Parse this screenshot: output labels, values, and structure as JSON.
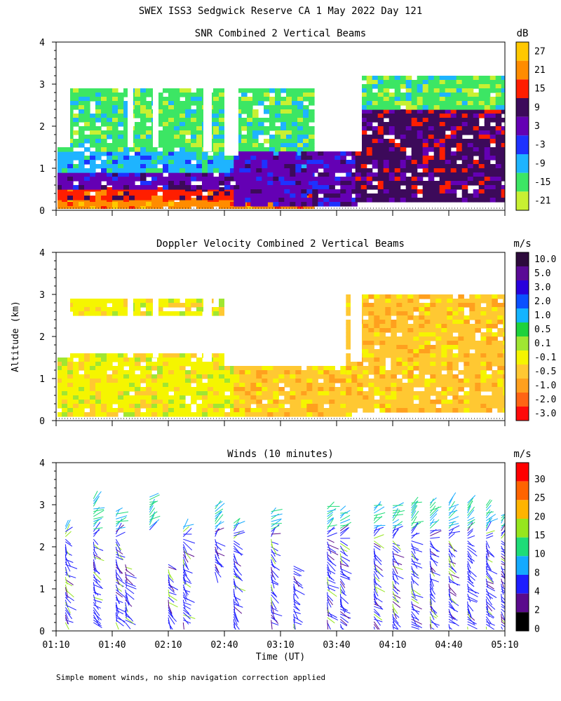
{
  "figure": {
    "title": "SWEX ISS3 Sedgwick Reserve CA   1 May 2022 Day 121",
    "ylabel": "Altitude (km)",
    "xlabel": "Time (UT)",
    "footnote": "Simple moment winds, no ship navigation correction applied",
    "x_ticks": [
      "01:10",
      "01:40",
      "02:10",
      "02:40",
      "03:10",
      "03:40",
      "04:10",
      "04:40",
      "05:10"
    ],
    "y_ticks": [
      "0",
      "1",
      "2",
      "3",
      "4"
    ]
  },
  "chart_data": [
    {
      "type": "heatmap",
      "title": "SNR Combined 2 Vertical Beams",
      "units": "dB",
      "xlabel": "",
      "ylabel": "Altitude (km)",
      "x_range": [
        "01:10",
        "05:10"
      ],
      "ylim": [
        0,
        4
      ],
      "colorbar_labels": [
        "27",
        "21",
        "15",
        "9",
        "3",
        "-3",
        "-9",
        "-15",
        "-21"
      ],
      "colorbar_colors": [
        "#ffc800",
        "#ff8c00",
        "#ff1e00",
        "#3c0a5a",
        "#6400b4",
        "#1e32ff",
        "#1eb4ff",
        "#3ce664",
        "#c8f032"
      ],
      "regions": [
        {
          "from": "01:10",
          "to": "03:27",
          "alt_km": [
            0.0,
            0.3
          ],
          "value_db": 21
        },
        {
          "from": "01:10",
          "to": "03:27",
          "alt_km": [
            0.3,
            0.55
          ],
          "value_db": 15
        },
        {
          "from": "01:10",
          "to": "03:27",
          "alt_km": [
            0.55,
            0.9
          ],
          "value_db": 3
        },
        {
          "from": "01:10",
          "to": "03:27",
          "alt_km": [
            0.9,
            1.4
          ],
          "value_db": -9
        },
        {
          "from": "01:10",
          "to": "03:27",
          "alt_km": [
            1.4,
            2.9
          ],
          "value_db": -15
        },
        {
          "from": "02:45",
          "to": "03:50",
          "alt_km": [
            0.1,
            1.4
          ],
          "value_db": 3
        },
        {
          "from": "03:50",
          "to": "05:10",
          "alt_km": [
            0.2,
            2.4
          ],
          "value_db": 9
        },
        {
          "from": "03:50",
          "to": "05:10",
          "alt_km": [
            2.4,
            3.2
          ],
          "value_db": -15
        }
      ]
    },
    {
      "type": "heatmap",
      "title": "Doppler Velocity Combined 2 Vertical Beams",
      "units": "m/s",
      "xlabel": "",
      "ylabel": "Altitude (km)",
      "x_range": [
        "01:10",
        "05:10"
      ],
      "ylim": [
        0,
        4
      ],
      "colorbar_labels": [
        "10.0",
        "5.0",
        "3.0",
        "2.0",
        "1.0",
        "0.5",
        "0.1",
        "-0.1",
        "-0.5",
        "-1.0",
        "-2.0",
        "-3.0"
      ],
      "colorbar_colors": [
        "#2d0a3c",
        "#5a0a96",
        "#2800dc",
        "#0a50ff",
        "#14b4ff",
        "#1ed23c",
        "#a0e632",
        "#f5f500",
        "#ffc832",
        "#ffa01e",
        "#ff6414",
        "#ff0a0a"
      ],
      "regions": [
        {
          "from": "01:10",
          "to": "02:45",
          "alt_km": [
            0.1,
            1.6
          ],
          "value_ms": -0.1
        },
        {
          "from": "01:10",
          "to": "02:45",
          "alt_km": [
            2.5,
            2.9
          ],
          "value_ms": -0.1
        },
        {
          "from": "02:45",
          "to": "03:45",
          "alt_km": [
            0.1,
            1.3
          ],
          "value_ms": -0.5
        },
        {
          "from": "03:45",
          "to": "05:10",
          "alt_km": [
            0.2,
            3.0
          ],
          "value_ms": -0.5
        }
      ]
    },
    {
      "type": "scatter",
      "title": "Winds (10 minutes)",
      "units": "m/s",
      "xlabel": "Time (UT)",
      "ylabel": "Altitude (km)",
      "x_range": [
        "01:10",
        "05:10"
      ],
      "ylim": [
        0,
        4
      ],
      "colorbar_labels": [
        "30",
        "25",
        "20",
        "15",
        "10",
        "8",
        "4",
        "2",
        "0"
      ],
      "colorbar_colors": [
        "#ff0000",
        "#ff6400",
        "#ffb400",
        "#96e61e",
        "#1edc78",
        "#14aaff",
        "#1e1eff",
        "#5a0a8c",
        "#000000"
      ],
      "barb_columns": [
        {
          "time": "01:15",
          "alt_km": [
            0.2,
            2.5
          ]
        },
        {
          "time": "01:30",
          "alt_km": [
            0.2,
            3.2
          ]
        },
        {
          "time": "01:42",
          "alt_km": [
            0.2,
            2.9
          ]
        },
        {
          "time": "01:47",
          "alt_km": [
            0.2,
            1.6
          ]
        },
        {
          "time": "02:00",
          "alt_km": [
            2.4,
            3.2
          ]
        },
        {
          "time": "02:10",
          "alt_km": [
            0.2,
            1.6
          ]
        },
        {
          "time": "02:18",
          "alt_km": [
            0.2,
            2.5
          ]
        },
        {
          "time": "02:35",
          "alt_km": [
            1.4,
            3.0
          ]
        },
        {
          "time": "02:45",
          "alt_km": [
            0.1,
            2.6
          ]
        },
        {
          "time": "03:05",
          "alt_km": [
            0.2,
            2.9
          ]
        },
        {
          "time": "03:17",
          "alt_km": [
            0.1,
            1.6
          ]
        },
        {
          "time": "03:35",
          "alt_km": [
            0.2,
            3.0
          ]
        },
        {
          "time": "03:42",
          "alt_km": [
            0.1,
            2.9
          ]
        },
        {
          "time": "04:00",
          "alt_km": [
            0.1,
            3.0
          ]
        },
        {
          "time": "04:10",
          "alt_km": [
            0.1,
            3.0
          ]
        },
        {
          "time": "04:20",
          "alt_km": [
            0.1,
            3.1
          ]
        },
        {
          "time": "04:30",
          "alt_km": [
            0.1,
            3.1
          ]
        },
        {
          "time": "04:40",
          "alt_km": [
            0.1,
            3.1
          ]
        },
        {
          "time": "04:50",
          "alt_km": [
            0.1,
            3.1
          ]
        },
        {
          "time": "05:00",
          "alt_km": [
            0.1,
            3.0
          ]
        },
        {
          "time": "05:08",
          "alt_km": [
            0.1,
            2.8
          ]
        }
      ]
    }
  ]
}
